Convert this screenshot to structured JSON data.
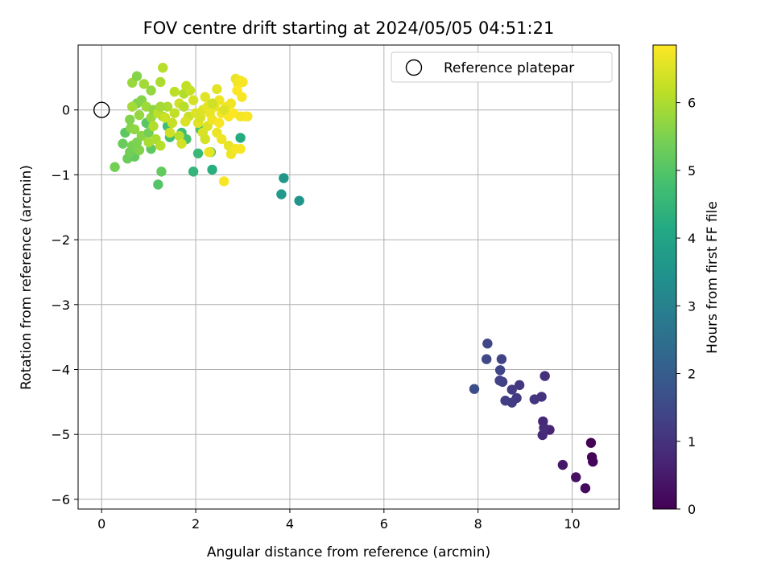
{
  "chart_data": {
    "type": "scatter",
    "title": "FOV centre drift starting at 2024/05/05 04:51:21",
    "xlabel": "Angular distance from reference (arcmin)",
    "ylabel": "Rotation from reference (arcmin)",
    "xlim": [
      -0.5,
      11.0
    ],
    "ylim": [
      -6.15,
      1.0
    ],
    "xticks": [
      0,
      2,
      4,
      6,
      8,
      10
    ],
    "yticks": [
      0,
      -1,
      -2,
      -3,
      -4,
      -5,
      -6
    ],
    "grid": true,
    "legend": {
      "position": "top-right",
      "entries": [
        "Reference platepar"
      ]
    },
    "reference_point": {
      "x": 0,
      "y": 0,
      "label": "Reference platepar"
    },
    "colorbar": {
      "label": "Hours from first FF file",
      "min": 0,
      "max": 6.85,
      "ticks": [
        0,
        1,
        2,
        3,
        4,
        5,
        6
      ],
      "colormap": "viridis"
    },
    "points": [
      {
        "x": 10.4,
        "y": -5.13,
        "c": 0.05
      },
      {
        "x": 10.42,
        "y": -5.35,
        "c": 0.08
      },
      {
        "x": 10.44,
        "y": -5.42,
        "c": 0.1
      },
      {
        "x": 10.28,
        "y": -5.83,
        "c": 0.2
      },
      {
        "x": 10.08,
        "y": -5.66,
        "c": 0.3
      },
      {
        "x": 9.8,
        "y": -5.47,
        "c": 0.45
      },
      {
        "x": 9.52,
        "y": -4.93,
        "c": 0.7
      },
      {
        "x": 9.38,
        "y": -4.8,
        "c": 0.75
      },
      {
        "x": 9.37,
        "y": -5.01,
        "c": 0.8
      },
      {
        "x": 9.4,
        "y": -4.9,
        "c": 0.85
      },
      {
        "x": 9.42,
        "y": -4.1,
        "c": 0.95
      },
      {
        "x": 9.35,
        "y": -4.42,
        "c": 1.0
      },
      {
        "x": 9.2,
        "y": -4.46,
        "c": 1.05
      },
      {
        "x": 8.88,
        "y": -4.24,
        "c": 1.1
      },
      {
        "x": 8.82,
        "y": -4.44,
        "c": 1.15
      },
      {
        "x": 8.72,
        "y": -4.31,
        "c": 1.2
      },
      {
        "x": 8.72,
        "y": -4.51,
        "c": 1.22
      },
      {
        "x": 8.58,
        "y": -4.48,
        "c": 1.25
      },
      {
        "x": 8.52,
        "y": -4.19,
        "c": 1.3
      },
      {
        "x": 8.46,
        "y": -4.17,
        "c": 1.32
      },
      {
        "x": 8.5,
        "y": -3.84,
        "c": 1.35
      },
      {
        "x": 8.47,
        "y": -4.01,
        "c": 1.4
      },
      {
        "x": 8.2,
        "y": -3.6,
        "c": 1.45
      },
      {
        "x": 8.18,
        "y": -3.84,
        "c": 1.5
      },
      {
        "x": 7.92,
        "y": -4.3,
        "c": 1.6
      },
      {
        "x": 3.87,
        "y": -1.05,
        "c": 3.6
      },
      {
        "x": 3.82,
        "y": -1.3,
        "c": 3.7
      },
      {
        "x": 4.2,
        "y": -1.4,
        "c": 3.5
      },
      {
        "x": 2.35,
        "y": -0.92,
        "c": 4.3
      },
      {
        "x": 1.95,
        "y": -0.95,
        "c": 4.5
      },
      {
        "x": 2.95,
        "y": -0.43,
        "c": 4.2
      },
      {
        "x": 2.32,
        "y": -0.65,
        "c": 4.4
      },
      {
        "x": 2.05,
        "y": -0.67,
        "c": 4.6
      },
      {
        "x": 1.7,
        "y": -0.35,
        "c": 4.7
      },
      {
        "x": 1.45,
        "y": -0.42,
        "c": 4.8
      },
      {
        "x": 1.4,
        "y": -0.25,
        "c": 4.7
      },
      {
        "x": 1.8,
        "y": -0.45,
        "c": 4.85
      },
      {
        "x": 2.1,
        "y": -0.3,
        "c": 4.9
      },
      {
        "x": 1.2,
        "y": -1.15,
        "c": 5.0
      },
      {
        "x": 1.27,
        "y": -0.95,
        "c": 5.2
      },
      {
        "x": 0.28,
        "y": -0.88,
        "c": 5.4
      },
      {
        "x": 0.55,
        "y": -0.75,
        "c": 5.3
      },
      {
        "x": 0.7,
        "y": -0.72,
        "c": 5.2
      },
      {
        "x": 0.6,
        "y": -0.65,
        "c": 5.35
      },
      {
        "x": 0.45,
        "y": -0.52,
        "c": 5.25
      },
      {
        "x": 0.5,
        "y": -0.35,
        "c": 5.1
      },
      {
        "x": 0.65,
        "y": -0.55,
        "c": 5.45
      },
      {
        "x": 0.8,
        "y": -0.62,
        "c": 5.55
      },
      {
        "x": 0.75,
        "y": -0.5,
        "c": 5.5
      },
      {
        "x": 0.62,
        "y": -0.28,
        "c": 5.6
      },
      {
        "x": 0.7,
        "y": -0.3,
        "c": 5.7
      },
      {
        "x": 0.85,
        "y": -0.4,
        "c": 5.65
      },
      {
        "x": 1.05,
        "y": -0.6,
        "c": 5.15
      },
      {
        "x": 1.0,
        "y": -0.35,
        "c": 5.4
      },
      {
        "x": 0.95,
        "y": -0.2,
        "c": 5.05
      },
      {
        "x": 1.05,
        "y": -0.12,
        "c": 5.8
      },
      {
        "x": 0.6,
        "y": -0.15,
        "c": 5.55
      },
      {
        "x": 0.8,
        "y": -0.08,
        "c": 5.75
      },
      {
        "x": 0.75,
        "y": 0.1,
        "c": 5.5
      },
      {
        "x": 0.85,
        "y": 0.15,
        "c": 5.6
      },
      {
        "x": 0.95,
        "y": 0.05,
        "c": 5.85
      },
      {
        "x": 1.1,
        "y": 0.0,
        "c": 5.7
      },
      {
        "x": 0.65,
        "y": 0.05,
        "c": 5.9
      },
      {
        "x": 1.0,
        "y": -0.5,
        "c": 5.95
      },
      {
        "x": 1.15,
        "y": -0.45,
        "c": 6.0
      },
      {
        "x": 1.25,
        "y": -0.55,
        "c": 6.1
      },
      {
        "x": 1.1,
        "y": -0.25,
        "c": 6.05
      },
      {
        "x": 1.3,
        "y": -0.1,
        "c": 5.85
      },
      {
        "x": 1.2,
        "y": -0.05,
        "c": 6.15
      },
      {
        "x": 1.4,
        "y": 0.05,
        "c": 6.0
      },
      {
        "x": 1.25,
        "y": 0.05,
        "c": 5.9
      },
      {
        "x": 1.55,
        "y": -0.05,
        "c": 6.2
      },
      {
        "x": 1.5,
        "y": -0.2,
        "c": 6.25
      },
      {
        "x": 1.35,
        "y": -0.12,
        "c": 6.3
      },
      {
        "x": 1.45,
        "y": -0.35,
        "c": 6.35
      },
      {
        "x": 1.65,
        "y": -0.4,
        "c": 6.1
      },
      {
        "x": 1.7,
        "y": -0.52,
        "c": 6.4
      },
      {
        "x": 0.65,
        "y": 0.42,
        "c": 5.8
      },
      {
        "x": 0.75,
        "y": 0.52,
        "c": 5.6
      },
      {
        "x": 0.9,
        "y": 0.4,
        "c": 5.9
      },
      {
        "x": 1.05,
        "y": 0.3,
        "c": 5.75
      },
      {
        "x": 1.25,
        "y": 0.43,
        "c": 6.0
      },
      {
        "x": 1.3,
        "y": 0.65,
        "c": 6.1
      },
      {
        "x": 1.55,
        "y": 0.28,
        "c": 6.15
      },
      {
        "x": 1.75,
        "y": 0.25,
        "c": 6.05
      },
      {
        "x": 1.8,
        "y": 0.37,
        "c": 6.2
      },
      {
        "x": 1.88,
        "y": 0.3,
        "c": 6.25
      },
      {
        "x": 1.65,
        "y": 0.1,
        "c": 6.35
      },
      {
        "x": 1.75,
        "y": 0.05,
        "c": 6.1
      },
      {
        "x": 1.85,
        "y": -0.1,
        "c": 6.3
      },
      {
        "x": 1.78,
        "y": -0.18,
        "c": 6.45
      },
      {
        "x": 1.95,
        "y": 0.15,
        "c": 6.4
      },
      {
        "x": 2.0,
        "y": -0.05,
        "c": 6.5
      },
      {
        "x": 2.05,
        "y": -0.2,
        "c": 6.55
      },
      {
        "x": 2.1,
        "y": -0.12,
        "c": 6.45
      },
      {
        "x": 2.15,
        "y": 0.0,
        "c": 6.5
      },
      {
        "x": 2.2,
        "y": 0.2,
        "c": 6.55
      },
      {
        "x": 2.25,
        "y": 0.05,
        "c": 6.6
      },
      {
        "x": 2.3,
        "y": -0.05,
        "c": 6.65
      },
      {
        "x": 2.25,
        "y": -0.25,
        "c": 6.5
      },
      {
        "x": 2.15,
        "y": -0.35,
        "c": 6.45
      },
      {
        "x": 2.2,
        "y": -0.45,
        "c": 6.4
      },
      {
        "x": 2.35,
        "y": -0.15,
        "c": 6.7
      },
      {
        "x": 2.4,
        "y": 0.05,
        "c": 6.6
      },
      {
        "x": 2.45,
        "y": 0.32,
        "c": 6.55
      },
      {
        "x": 2.5,
        "y": 0.15,
        "c": 6.7
      },
      {
        "x": 2.55,
        "y": -0.05,
        "c": 6.75
      },
      {
        "x": 2.5,
        "y": -0.2,
        "c": 6.8
      },
      {
        "x": 2.45,
        "y": -0.35,
        "c": 6.65
      },
      {
        "x": 2.55,
        "y": -0.45,
        "c": 6.7
      },
      {
        "x": 2.28,
        "y": -0.65,
        "c": 6.85
      },
      {
        "x": 2.3,
        "y": -0.65,
        "c": 6.6
      },
      {
        "x": 2.6,
        "y": -1.1,
        "c": 6.8
      },
      {
        "x": 2.65,
        "y": 0.05,
        "c": 6.75
      },
      {
        "x": 2.7,
        "y": -0.1,
        "c": 6.8
      },
      {
        "x": 2.75,
        "y": 0.1,
        "c": 6.7
      },
      {
        "x": 2.8,
        "y": -0.05,
        "c": 6.85
      },
      {
        "x": 2.85,
        "y": 0.48,
        "c": 6.65
      },
      {
        "x": 2.9,
        "y": 0.4,
        "c": 6.7
      },
      {
        "x": 2.95,
        "y": 0.45,
        "c": 6.75
      },
      {
        "x": 3.0,
        "y": 0.43,
        "c": 6.8
      },
      {
        "x": 2.88,
        "y": 0.3,
        "c": 6.85
      },
      {
        "x": 2.98,
        "y": 0.2,
        "c": 6.8
      },
      {
        "x": 3.05,
        "y": -0.1,
        "c": 6.85
      },
      {
        "x": 3.1,
        "y": -0.1,
        "c": 6.8
      },
      {
        "x": 2.95,
        "y": -0.1,
        "c": 6.75
      },
      {
        "x": 2.7,
        "y": -0.55,
        "c": 6.6
      },
      {
        "x": 2.75,
        "y": -0.68,
        "c": 6.7
      },
      {
        "x": 2.85,
        "y": -0.6,
        "c": 6.75
      },
      {
        "x": 2.95,
        "y": -0.6,
        "c": 6.8
      },
      {
        "x": 2.6,
        "y": 0.0,
        "c": 6.5
      },
      {
        "x": 2.35,
        "y": 0.1,
        "c": 6.35
      }
    ]
  }
}
